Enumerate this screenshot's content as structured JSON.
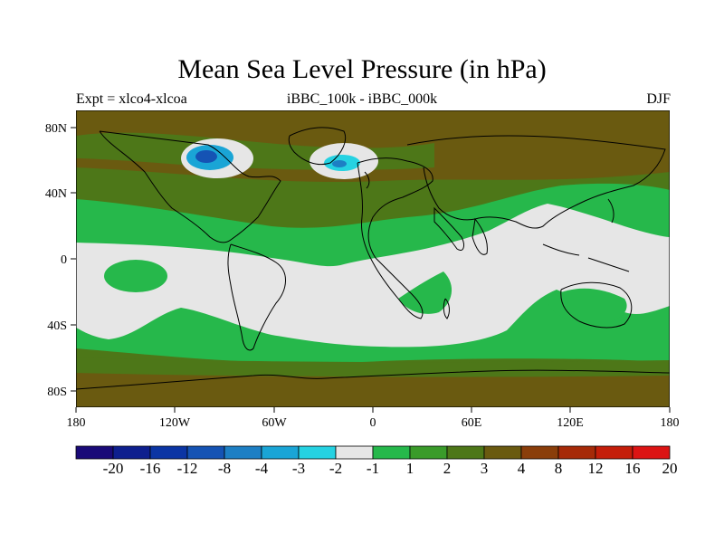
{
  "figure": {
    "title": "Mean Sea Level Pressure (in hPa)",
    "left_label": "Expt = xlco4-xlcoa",
    "center_label": "iBBC_100k - iBBC_000k",
    "right_label": "DJF"
  },
  "axes": {
    "x_ticks": [
      "180",
      "120W",
      "60W",
      "0",
      "60E",
      "120E",
      "180"
    ],
    "y_ticks": [
      "80N",
      "40N",
      "0",
      "40S",
      "80S"
    ]
  },
  "colorbar": {
    "labels": [
      "-20",
      "-16",
      "-12",
      "-8",
      "-4",
      "-3",
      "-2",
      "-1",
      "1",
      "2",
      "3",
      "4",
      "8",
      "12",
      "16",
      "20"
    ],
    "colors": [
      "#1a0a78",
      "#0e1f8e",
      "#0b35a4",
      "#1553b4",
      "#1d7fc4",
      "#1aa5d6",
      "#25d2e2",
      "#e6e6e6",
      "#26b84b",
      "#3a9b2a",
      "#4d7718",
      "#6a5a10",
      "#8a3e0a",
      "#a62a08",
      "#c41e0a",
      "#dc1414"
    ]
  },
  "chart_data": {
    "type": "heatmap",
    "title": "Mean Sea Level Pressure (in hPa)",
    "subtitle": "iBBC_100k - iBBC_000k",
    "left_string": "Expt = xlco4-xlcoa",
    "right_string": "DJF",
    "x_range": [
      -180,
      180
    ],
    "y_range": [
      -90,
      90
    ],
    "levels": [
      -20,
      -16,
      -12,
      -8,
      -4,
      -3,
      -2,
      -1,
      1,
      2,
      3,
      4,
      8,
      12,
      16,
      20
    ]
  }
}
